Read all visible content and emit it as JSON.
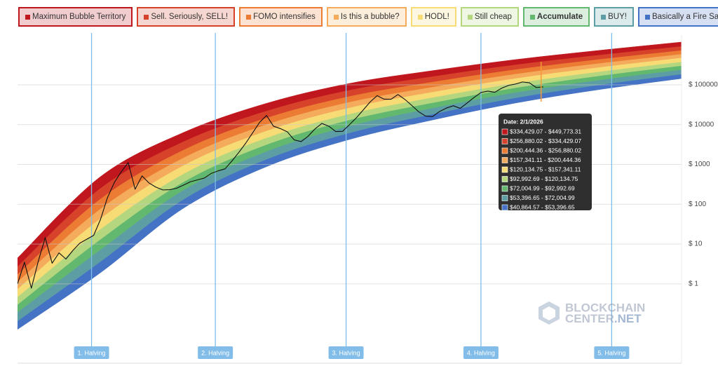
{
  "chart_data": {
    "type": "line",
    "yscale": "log",
    "ylim": [
      0.0115,
      1450000
    ],
    "yticks": [
      {
        "value": 1,
        "label": "$ 1"
      },
      {
        "value": 10,
        "label": "$ 10"
      },
      {
        "value": 100,
        "label": "$ 100"
      },
      {
        "value": 1000,
        "label": "$ 1000"
      },
      {
        "value": 10000,
        "label": "$ 10000"
      },
      {
        "value": 100000,
        "label": "$ 100000"
      }
    ],
    "grid": true,
    "xlim": [
      0,
      96
    ],
    "bands": [
      {
        "name": "Maximum Bubble Territory",
        "color": "#c0171f"
      },
      {
        "name": "Sell. Seriously, SELL!",
        "color": "#d6432a"
      },
      {
        "name": "FOMO intensifies",
        "color": "#ec7b33"
      },
      {
        "name": "Is this a bubble?",
        "color": "#f4ab5c"
      },
      {
        "name": "HODL!",
        "color": "#f7dc76"
      },
      {
        "name": "Still cheap",
        "color": "#b4d67f"
      },
      {
        "name": "Accumulate",
        "color": "#62b86f"
      },
      {
        "name": "BUY!",
        "color": "#5d9ea4"
      },
      {
        "name": "Basically a Fire Sale",
        "color": "#4472c4"
      }
    ],
    "band_x": [
      0,
      12,
      24,
      36,
      48,
      60,
      72,
      84,
      96
    ],
    "boundaries": [
      [
        0.0718,
        1.91,
        79.6,
        879,
        4236,
        13060,
        34830,
        75340,
        143900
      ],
      [
        0.114,
        3.56,
        130,
        1324,
        6081,
        17950,
        46130,
        97050,
        182000
      ],
      [
        0.19,
        7.11,
        224,
        2089,
        9120,
        25640,
        63100,
        128800,
        236600
      ],
      [
        0.296,
        12.9,
        357,
        3090,
        12880,
        34750,
        82520,
        164100,
        296500
      ],
      [
        0.46,
        23.3,
        570,
        4571,
        18200,
        47210,
        107900,
        208900,
        371500
      ],
      [
        0.733,
        43.4,
        933,
        6887,
        26190,
        65010,
        143200,
        269800,
        471000
      ],
      [
        1.11,
        76,
        1452,
        9977,
        36370,
        86700,
        184500,
        339600,
        582100
      ],
      [
        1.71,
        135,
        2286,
        14580,
        50820,
        116700,
        239300,
        429500,
        724400
      ],
      [
        2.69,
        249,
        3698,
        21830,
        72610,
        159600,
        315500,
        550800,
        914100
      ],
      [
        4.48,
        494,
        6353,
        34280,
        108400,
        227000,
        430500,
        729400,
        1186000
      ]
    ],
    "series": [
      {
        "color": "#111111",
        "x": [
          0,
          1,
          2,
          3,
          4,
          5,
          6,
          7,
          8,
          9,
          10,
          11,
          12,
          13,
          14,
          15,
          16,
          17,
          18,
          19,
          20,
          21,
          22,
          23,
          24,
          25,
          26,
          27,
          28,
          29,
          30,
          31,
          32,
          33,
          34,
          35,
          36,
          37,
          38,
          39,
          40,
          41,
          42,
          43,
          44,
          45,
          46,
          47,
          48,
          49,
          50,
          51,
          52,
          53,
          54,
          55,
          56,
          57,
          58,
          59,
          60,
          61,
          62,
          63,
          64,
          65,
          66,
          67,
          68,
          69,
          70,
          71,
          72,
          73,
          74,
          75,
          76
        ],
        "values": [
          1,
          3.5,
          0.78,
          3.7,
          14.5,
          3.3,
          6,
          4.2,
          6.9,
          10.5,
          13.2,
          16.5,
          41.7,
          146,
          353,
          656,
          1110,
          238,
          514,
          343,
          269,
          229,
          232,
          252,
          303,
          367,
          408,
          455,
          593,
          689,
          775,
          1220,
          2010,
          3430,
          6250,
          11400,
          17000,
          9140,
          7940,
          6610,
          4130,
          3750,
          5080,
          7780,
          10700,
          9140,
          6700,
          6780,
          10000,
          14900,
          23500,
          37500,
          53300,
          43500,
          43400,
          57100,
          43000,
          30300,
          21000,
          16400,
          15900,
          21300,
          26000,
          29800,
          25600,
          34800,
          48000,
          64000,
          69500,
          65000,
          82200,
          96800,
          104500,
          118000,
          112500,
          85300,
          88500
        ]
      }
    ],
    "halvings": [
      {
        "label": "1. Halving",
        "x": 10.7
      },
      {
        "label": "2. Halving",
        "x": 28.6
      },
      {
        "label": "3. Halving",
        "x": 47.5
      },
      {
        "label": "4. Halving",
        "x": 67
      },
      {
        "label": "5. Halving",
        "x": 85.9
      }
    ],
    "tooltip": {
      "x": 75.7,
      "date": "Date: 2/1/2026",
      "rows": [
        "$334,429.07 - $449,773.31",
        "$256,880.02 - $334,429.07",
        "$200,444.36 - $256,880.02",
        "$157,341.11 - $200,444.36",
        "$120,134.75 - $157,341.11",
        "$92,992.69 - $120,134.75",
        "$72,004.99 - $92,992.69",
        "$53,396.65 - $72,004.99",
        "$40,864.57 - $53,396.65"
      ]
    },
    "watermark": [
      "BLOCKCHAIN",
      "CENTER",
      ".NET"
    ]
  }
}
